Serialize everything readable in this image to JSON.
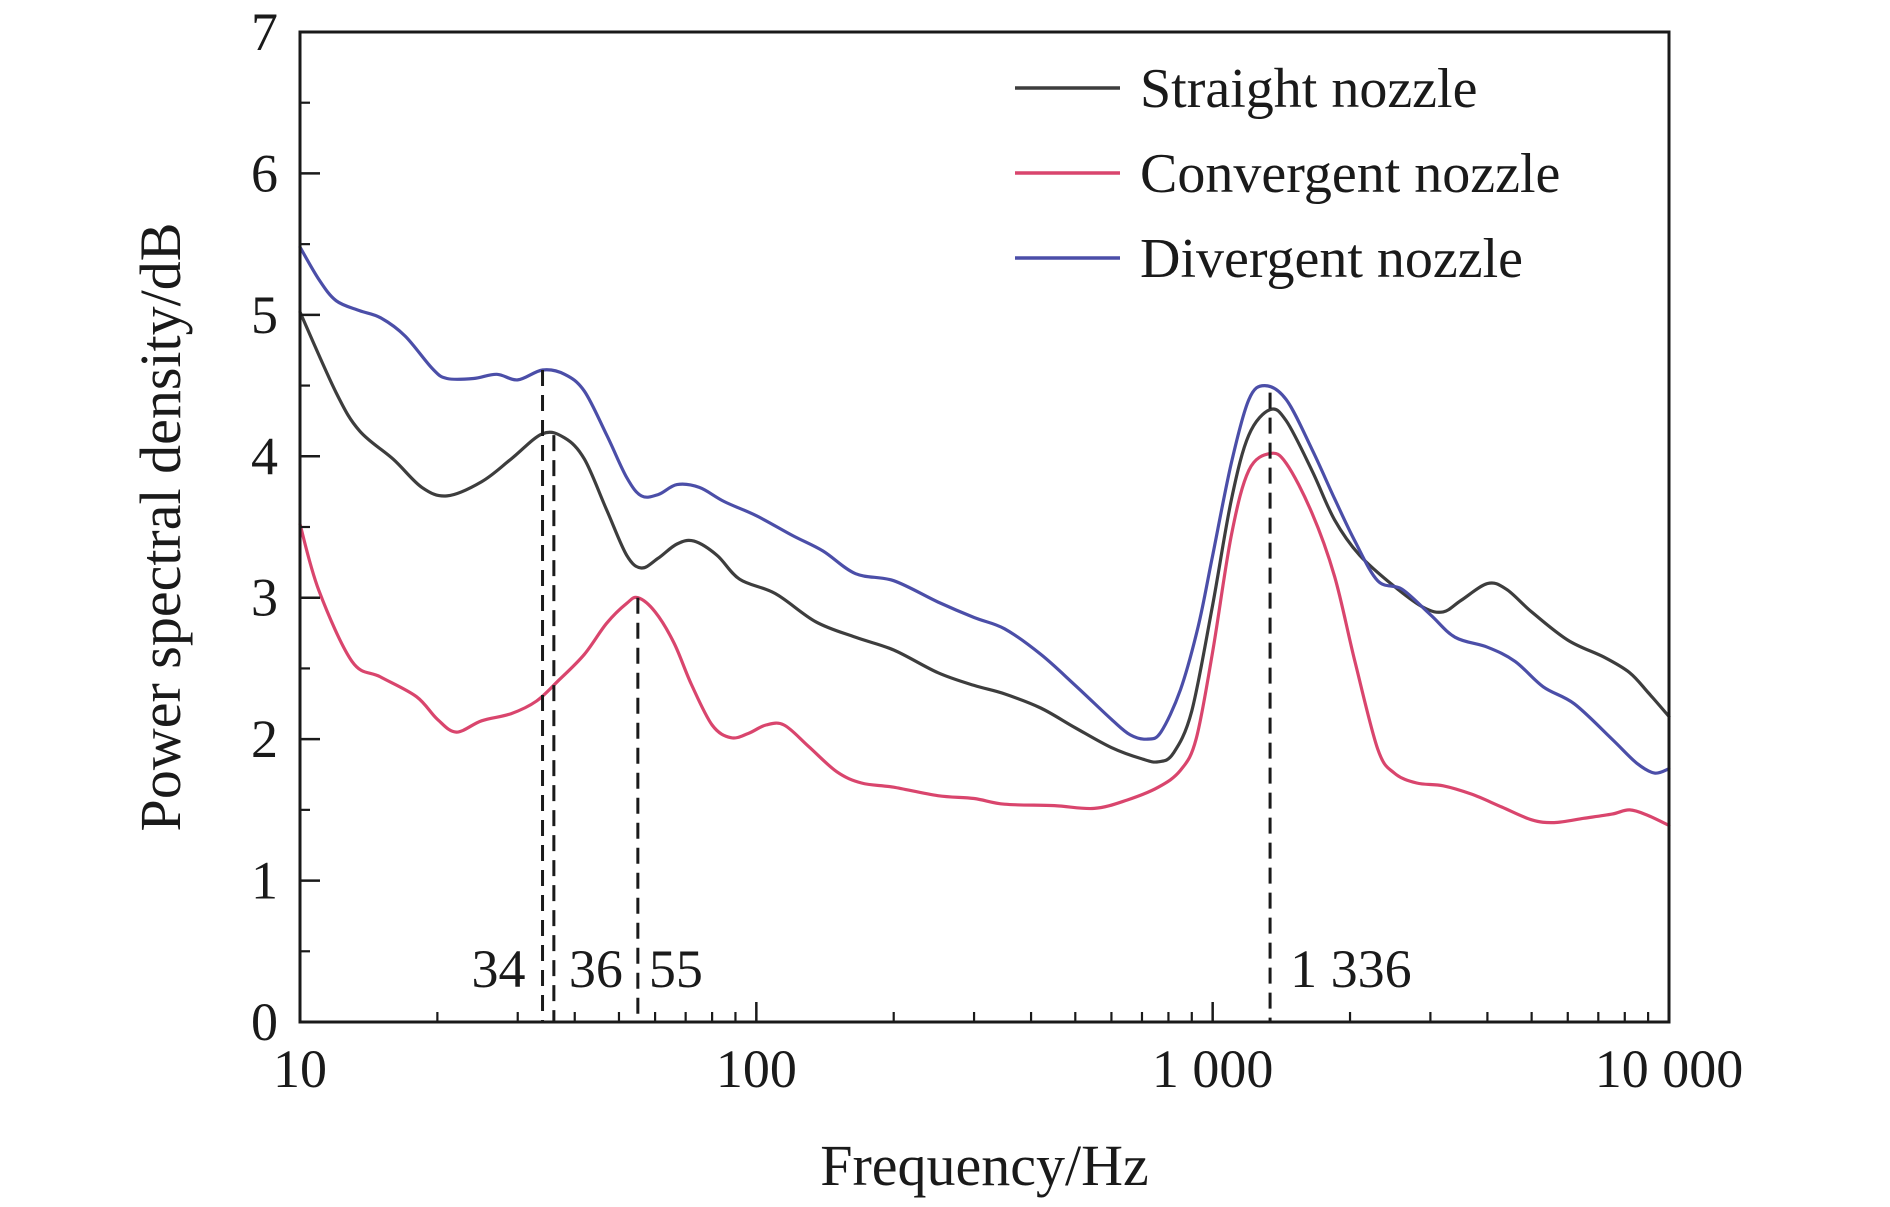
{
  "chart_data": {
    "type": "line",
    "title": "",
    "xlabel": "Frequency/Hz",
    "ylabel": "Power spectral density/dB",
    "xscale": "log",
    "xlim": [
      10,
      10000
    ],
    "ylim": [
      0,
      7
    ],
    "grid": false,
    "legend_position": "top-right",
    "x_ticks": [
      {
        "value": 10,
        "label": "10"
      },
      {
        "value": 100,
        "label": "100"
      },
      {
        "value": 1000,
        "label": "1 000"
      },
      {
        "value": 10000,
        "label": "10 000"
      }
    ],
    "y_ticks": [
      {
        "value": 0,
        "label": "0"
      },
      {
        "value": 1,
        "label": "1"
      },
      {
        "value": 2,
        "label": "2"
      },
      {
        "value": 3,
        "label": "3"
      },
      {
        "value": 4,
        "label": "4"
      },
      {
        "value": 5,
        "label": "5"
      },
      {
        "value": 6,
        "label": "6"
      },
      {
        "value": 7,
        "label": "7"
      }
    ],
    "series": [
      {
        "name": "Straight nozzle",
        "color": "#3d3d3d",
        "points": [
          [
            10,
            5.02
          ],
          [
            12,
            4.45
          ],
          [
            13.5,
            4.18
          ],
          [
            16,
            3.98
          ],
          [
            18.5,
            3.78
          ],
          [
            21,
            3.72
          ],
          [
            25,
            3.82
          ],
          [
            29,
            3.98
          ],
          [
            34,
            4.16
          ],
          [
            38,
            4.13
          ],
          [
            42,
            3.98
          ],
          [
            47,
            3.62
          ],
          [
            52,
            3.3
          ],
          [
            56,
            3.21
          ],
          [
            61,
            3.28
          ],
          [
            67,
            3.38
          ],
          [
            73,
            3.4
          ],
          [
            82,
            3.3
          ],
          [
            92,
            3.13
          ],
          [
            110,
            3.03
          ],
          [
            135,
            2.83
          ],
          [
            165,
            2.72
          ],
          [
            200,
            2.63
          ],
          [
            250,
            2.47
          ],
          [
            300,
            2.38
          ],
          [
            350,
            2.32
          ],
          [
            420,
            2.22
          ],
          [
            500,
            2.08
          ],
          [
            600,
            1.94
          ],
          [
            700,
            1.86
          ],
          [
            760,
            1.84
          ],
          [
            820,
            1.9
          ],
          [
            900,
            2.2
          ],
          [
            1000,
            2.95
          ],
          [
            1100,
            3.7
          ],
          [
            1200,
            4.15
          ],
          [
            1336,
            4.33
          ],
          [
            1450,
            4.25
          ],
          [
            1650,
            3.9
          ],
          [
            1850,
            3.55
          ],
          [
            2100,
            3.3
          ],
          [
            2500,
            3.08
          ],
          [
            2900,
            2.93
          ],
          [
            3200,
            2.9
          ],
          [
            3500,
            2.98
          ],
          [
            4000,
            3.1
          ],
          [
            4400,
            3.06
          ],
          [
            5000,
            2.9
          ],
          [
            6000,
            2.7
          ],
          [
            7200,
            2.58
          ],
          [
            8200,
            2.47
          ],
          [
            9000,
            2.33
          ],
          [
            10000,
            2.16
          ]
        ]
      },
      {
        "name": "Convergent nozzle",
        "color": "#d9456d",
        "points": [
          [
            10,
            3.52
          ],
          [
            11,
            3.05
          ],
          [
            13,
            2.55
          ],
          [
            15,
            2.44
          ],
          [
            18,
            2.3
          ],
          [
            20,
            2.14
          ],
          [
            22,
            2.05
          ],
          [
            25,
            2.13
          ],
          [
            29,
            2.18
          ],
          [
            33,
            2.27
          ],
          [
            37,
            2.42
          ],
          [
            42,
            2.6
          ],
          [
            47,
            2.82
          ],
          [
            52,
            2.96
          ],
          [
            55,
            3.0
          ],
          [
            60,
            2.9
          ],
          [
            66,
            2.68
          ],
          [
            72,
            2.39
          ],
          [
            80,
            2.1
          ],
          [
            88,
            2.01
          ],
          [
            96,
            2.04
          ],
          [
            105,
            2.1
          ],
          [
            115,
            2.1
          ],
          [
            130,
            1.95
          ],
          [
            150,
            1.77
          ],
          [
            170,
            1.69
          ],
          [
            200,
            1.66
          ],
          [
            250,
            1.6
          ],
          [
            300,
            1.58
          ],
          [
            350,
            1.54
          ],
          [
            450,
            1.53
          ],
          [
            550,
            1.51
          ],
          [
            650,
            1.57
          ],
          [
            760,
            1.66
          ],
          [
            850,
            1.78
          ],
          [
            920,
            2.0
          ],
          [
            1000,
            2.62
          ],
          [
            1100,
            3.45
          ],
          [
            1200,
            3.9
          ],
          [
            1336,
            4.02
          ],
          [
            1450,
            3.95
          ],
          [
            1650,
            3.6
          ],
          [
            1850,
            3.15
          ],
          [
            2050,
            2.55
          ],
          [
            2300,
            1.93
          ],
          [
            2500,
            1.76
          ],
          [
            2800,
            1.69
          ],
          [
            3200,
            1.67
          ],
          [
            3700,
            1.61
          ],
          [
            4300,
            1.52
          ],
          [
            5000,
            1.43
          ],
          [
            5600,
            1.41
          ],
          [
            6500,
            1.44
          ],
          [
            7500,
            1.47
          ],
          [
            8200,
            1.5
          ],
          [
            9000,
            1.46
          ],
          [
            10000,
            1.39
          ]
        ]
      },
      {
        "name": "Divergent nozzle",
        "color": "#4b4ea8",
        "points": [
          [
            10,
            5.48
          ],
          [
            11,
            5.25
          ],
          [
            12,
            5.1
          ],
          [
            13.5,
            5.03
          ],
          [
            15,
            4.98
          ],
          [
            17,
            4.85
          ],
          [
            19.5,
            4.62
          ],
          [
            21,
            4.55
          ],
          [
            24,
            4.55
          ],
          [
            27,
            4.58
          ],
          [
            30,
            4.54
          ],
          [
            34,
            4.61
          ],
          [
            38,
            4.58
          ],
          [
            42,
            4.46
          ],
          [
            47,
            4.15
          ],
          [
            52,
            3.85
          ],
          [
            56,
            3.72
          ],
          [
            61,
            3.73
          ],
          [
            67,
            3.8
          ],
          [
            75,
            3.78
          ],
          [
            85,
            3.68
          ],
          [
            100,
            3.58
          ],
          [
            120,
            3.44
          ],
          [
            140,
            3.33
          ],
          [
            165,
            3.17
          ],
          [
            200,
            3.12
          ],
          [
            250,
            2.97
          ],
          [
            300,
            2.86
          ],
          [
            350,
            2.78
          ],
          [
            420,
            2.6
          ],
          [
            500,
            2.38
          ],
          [
            600,
            2.14
          ],
          [
            660,
            2.03
          ],
          [
            720,
            2.0
          ],
          [
            770,
            2.05
          ],
          [
            850,
            2.35
          ],
          [
            930,
            2.8
          ],
          [
            1000,
            3.3
          ],
          [
            1100,
            3.96
          ],
          [
            1200,
            4.4
          ],
          [
            1300,
            4.5
          ],
          [
            1450,
            4.4
          ],
          [
            1650,
            4.05
          ],
          [
            1850,
            3.7
          ],
          [
            2050,
            3.4
          ],
          [
            2300,
            3.12
          ],
          [
            2600,
            3.06
          ],
          [
            3000,
            2.88
          ],
          [
            3400,
            2.72
          ],
          [
            4000,
            2.65
          ],
          [
            4600,
            2.55
          ],
          [
            5300,
            2.37
          ],
          [
            6200,
            2.25
          ],
          [
            7500,
            2.0
          ],
          [
            8500,
            1.83
          ],
          [
            9300,
            1.76
          ],
          [
            10000,
            1.79
          ]
        ]
      }
    ],
    "vertical_markers": [
      {
        "x": 34,
        "y_top": 4.61,
        "label": "34"
      },
      {
        "x": 36,
        "y_top": 4.15,
        "label": "36"
      },
      {
        "x": 55,
        "y_top": 3.0,
        "label": "55"
      },
      {
        "x": 1336,
        "y_top": 4.45,
        "label": "1 336"
      }
    ]
  }
}
